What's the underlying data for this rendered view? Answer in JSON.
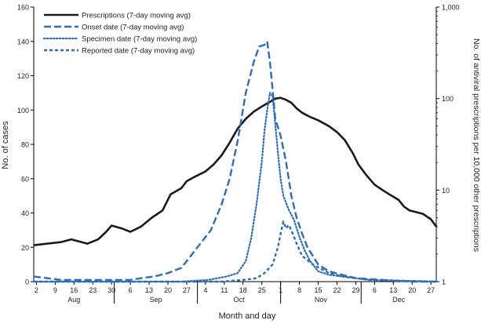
{
  "chart_data": {
    "type": "line",
    "title": "",
    "xlabel": "Month and day",
    "ylabel": "No. of cases",
    "y2label": "No. of antiviral prescriptions per 10,000 other prescriptions",
    "ylim": [
      0,
      160
    ],
    "y2lim": [
      1,
      1000
    ],
    "y2scale": "log",
    "yticks": [
      "0",
      "20",
      "40",
      "60",
      "80",
      "100",
      "120",
      "140",
      "160"
    ],
    "y2ticks": [
      "1",
      "10",
      "100",
      "1,000"
    ],
    "x_days_range": [
      0,
      150
    ],
    "x_day_ticks": [
      {
        "day": 1,
        "label": "2"
      },
      {
        "day": 8,
        "label": "9"
      },
      {
        "day": 15,
        "label": "16"
      },
      {
        "day": 22,
        "label": "23"
      },
      {
        "day": 29,
        "label": "30"
      },
      {
        "day": 36,
        "label": "6"
      },
      {
        "day": 43,
        "label": "13"
      },
      {
        "day": 50,
        "label": "20"
      },
      {
        "day": 57,
        "label": "27"
      },
      {
        "day": 64,
        "label": "4"
      },
      {
        "day": 71,
        "label": "11"
      },
      {
        "day": 78,
        "label": "18"
      },
      {
        "day": 85,
        "label": "25"
      },
      {
        "day": 92,
        "label": "1"
      },
      {
        "day": 99,
        "label": "8"
      },
      {
        "day": 106,
        "label": "15"
      },
      {
        "day": 113,
        "label": "22"
      },
      {
        "day": 120,
        "label": "29"
      },
      {
        "day": 127,
        "label": "6"
      },
      {
        "day": 134,
        "label": "13"
      },
      {
        "day": 141,
        "label": "20"
      },
      {
        "day": 148,
        "label": "27"
      }
    ],
    "month_boundaries": [
      30,
      61,
      92,
      122
    ],
    "months": [
      {
        "label": "Aug",
        "start": 0,
        "end": 30
      },
      {
        "label": "Sep",
        "start": 30,
        "end": 61
      },
      {
        "label": "Oct",
        "start": 61,
        "end": 92
      },
      {
        "label": "Nov",
        "start": 92,
        "end": 122
      },
      {
        "label": "Dec",
        "start": 122,
        "end": 150
      }
    ],
    "legend_position": "top-left",
    "series": [
      {
        "name": "Prescriptions (7-day moving avg)",
        "axis": "right",
        "style": "solid",
        "color": "#1a1a1a",
        "points": [
          [
            0,
            2.5
          ],
          [
            5,
            2.6
          ],
          [
            10,
            2.7
          ],
          [
            14,
            2.9
          ],
          [
            20,
            2.6
          ],
          [
            24,
            2.9
          ],
          [
            27,
            3.5
          ],
          [
            29,
            4.1
          ],
          [
            33,
            3.8
          ],
          [
            36,
            3.5
          ],
          [
            40,
            4.0
          ],
          [
            44,
            5.0
          ],
          [
            48,
            6.0
          ],
          [
            51,
            9.0
          ],
          [
            55,
            10.5
          ],
          [
            57,
            12.5
          ],
          [
            60,
            14.0
          ],
          [
            64,
            16.0
          ],
          [
            67,
            19.0
          ],
          [
            70,
            24.0
          ],
          [
            73,
            33.0
          ],
          [
            76,
            47.0
          ],
          [
            79,
            60.0
          ],
          [
            82,
            72.0
          ],
          [
            85,
            82.0
          ],
          [
            88,
            92.0
          ],
          [
            90,
            100.0
          ],
          [
            92,
            102.0
          ],
          [
            94,
            97.0
          ],
          [
            96,
            90.0
          ],
          [
            98,
            78.0
          ],
          [
            100,
            70.0
          ],
          [
            103,
            63.0
          ],
          [
            106,
            58.0
          ],
          [
            110,
            50.0
          ],
          [
            113,
            43.0
          ],
          [
            116,
            35.0
          ],
          [
            119,
            25.0
          ],
          [
            121,
            19.0
          ],
          [
            124,
            14.5
          ],
          [
            127,
            11.5
          ],
          [
            130,
            10.0
          ],
          [
            133,
            8.8
          ],
          [
            136,
            7.8
          ],
          [
            138,
            6.6
          ],
          [
            140,
            6.0
          ],
          [
            142,
            5.8
          ],
          [
            145,
            5.5
          ],
          [
            148,
            4.8
          ],
          [
            150,
            4.0
          ]
        ]
      },
      {
        "name": "Onset date (7-day moving avg)",
        "axis": "left",
        "style": "dash",
        "color": "#2d6db3",
        "points": [
          [
            0,
            3
          ],
          [
            10,
            1
          ],
          [
            20,
            1
          ],
          [
            30,
            1
          ],
          [
            36,
            1
          ],
          [
            40,
            2
          ],
          [
            45,
            3
          ],
          [
            50,
            5
          ],
          [
            55,
            8
          ],
          [
            58,
            14
          ],
          [
            62,
            22
          ],
          [
            66,
            30
          ],
          [
            70,
            45
          ],
          [
            73,
            60
          ],
          [
            76,
            82
          ],
          [
            79,
            110
          ],
          [
            82,
            128
          ],
          [
            84,
            137
          ],
          [
            86,
            138
          ],
          [
            87,
            140
          ],
          [
            88,
            128
          ],
          [
            89,
            112
          ],
          [
            90,
            95
          ],
          [
            92,
            85
          ],
          [
            94,
            70
          ],
          [
            96,
            50
          ],
          [
            98,
            37
          ],
          [
            100,
            28
          ],
          [
            102,
            20
          ],
          [
            104,
            15
          ],
          [
            106,
            10
          ],
          [
            110,
            6
          ],
          [
            115,
            4
          ],
          [
            120,
            2
          ],
          [
            130,
            1
          ],
          [
            140,
            0
          ],
          [
            150,
            0
          ]
        ]
      },
      {
        "name": "Specimen date (7-day moving avg)",
        "axis": "left",
        "style": "dot",
        "color": "#2d6db3",
        "points": [
          [
            0,
            0
          ],
          [
            55,
            0
          ],
          [
            65,
            1
          ],
          [
            72,
            3
          ],
          [
            76,
            5
          ],
          [
            79,
            12
          ],
          [
            81,
            25
          ],
          [
            83,
            45
          ],
          [
            85,
            70
          ],
          [
            86,
            88
          ],
          [
            87,
            100
          ],
          [
            88,
            110
          ],
          [
            89,
            108
          ],
          [
            90,
            92
          ],
          [
            91,
            75
          ],
          [
            92,
            60
          ],
          [
            93,
            50
          ],
          [
            95,
            42
          ],
          [
            97,
            36
          ],
          [
            99,
            26
          ],
          [
            101,
            18
          ],
          [
            103,
            12
          ],
          [
            106,
            6
          ],
          [
            110,
            4
          ],
          [
            115,
            3
          ],
          [
            125,
            1
          ],
          [
            150,
            0
          ]
        ]
      },
      {
        "name": "Reported date (7-day moving avg)",
        "axis": "left",
        "style": "shortdash",
        "color": "#2d6db3",
        "points": [
          [
            0,
            0
          ],
          [
            70,
            0
          ],
          [
            78,
            1
          ],
          [
            83,
            2
          ],
          [
            86,
            5
          ],
          [
            89,
            10
          ],
          [
            91,
            20
          ],
          [
            92,
            28
          ],
          [
            93,
            35
          ],
          [
            94,
            31
          ],
          [
            95,
            33
          ],
          [
            96,
            30
          ],
          [
            97,
            26
          ],
          [
            98,
            22
          ],
          [
            100,
            15
          ],
          [
            104,
            10
          ],
          [
            110,
            5
          ],
          [
            115,
            3
          ],
          [
            125,
            1
          ],
          [
            150,
            0
          ]
        ]
      }
    ]
  }
}
